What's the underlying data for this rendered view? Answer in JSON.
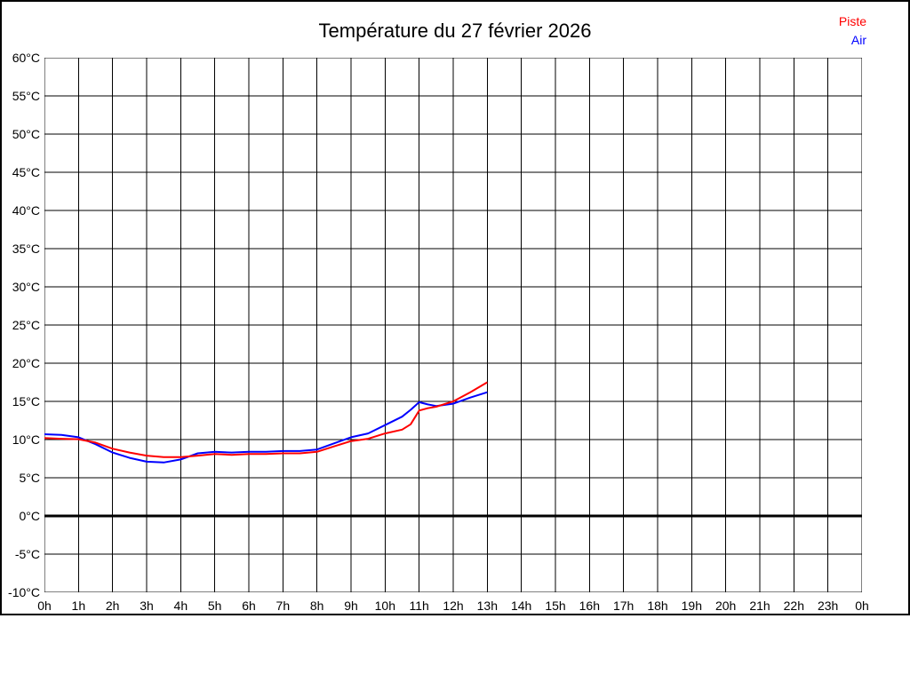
{
  "title": "Température du 27 février 2026",
  "legend": {
    "piste": {
      "label": "Piste",
      "color": "#ff0000"
    },
    "air": {
      "label": "Air",
      "color": "#0000ff"
    }
  },
  "chart_data": {
    "type": "line",
    "title": "Température du 27 février 2026",
    "xlabel": "",
    "ylabel": "",
    "xlim": [
      0,
      24
    ],
    "ylim": [
      -10,
      60
    ],
    "x_tick_labels": [
      "0h",
      "1h",
      "2h",
      "3h",
      "4h",
      "5h",
      "6h",
      "7h",
      "8h",
      "9h",
      "10h",
      "11h",
      "12h",
      "13h",
      "14h",
      "15h",
      "16h",
      "17h",
      "18h",
      "19h",
      "20h",
      "21h",
      "22h",
      "23h",
      "0h"
    ],
    "y_tick_labels": [
      "60°C",
      "55°C",
      "50°C",
      "45°C",
      "40°C",
      "35°C",
      "30°C",
      "25°C",
      "20°C",
      "15°C",
      "10°C",
      "5°C",
      "0°C",
      "-5°C",
      "-10°C"
    ],
    "grid": {
      "x_step": 1,
      "y_step": 5,
      "color": "#000000",
      "line_width": 1
    },
    "zero_line": {
      "value": 0,
      "line_width": 3,
      "color": "#000000"
    },
    "legend_position": "top-right",
    "series": [
      {
        "name": "Air",
        "color": "#0000ff",
        "line_width": 2,
        "x": [
          0,
          0.5,
          1,
          1.5,
          2,
          2.5,
          3,
          3.5,
          4,
          4.5,
          5,
          5.5,
          6,
          6.5,
          7,
          7.5,
          8,
          8.5,
          9,
          9.5,
          10,
          10.5,
          10.75,
          11,
          11.25,
          11.5,
          12,
          12.5,
          13
        ],
        "y": [
          10.7,
          10.6,
          10.3,
          9.4,
          8.3,
          7.6,
          7.1,
          7.0,
          7.4,
          8.2,
          8.4,
          8.3,
          8.4,
          8.4,
          8.5,
          8.5,
          8.7,
          9.5,
          10.3,
          10.8,
          11.9,
          13.0,
          13.9,
          14.9,
          14.6,
          14.4,
          14.7,
          15.5,
          16.2
        ]
      },
      {
        "name": "Piste",
        "color": "#ff0000",
        "line_width": 2,
        "x": [
          0,
          0.5,
          1,
          1.5,
          2,
          2.5,
          3,
          3.5,
          4,
          4.5,
          5,
          5.5,
          6,
          6.5,
          7,
          7.5,
          8,
          8.5,
          9,
          9.5,
          10,
          10.5,
          10.75,
          11,
          11.25,
          11.5,
          12,
          12.5,
          13
        ],
        "y": [
          10.2,
          10.1,
          10.05,
          9.6,
          8.8,
          8.3,
          7.9,
          7.7,
          7.7,
          7.9,
          8.1,
          8.0,
          8.1,
          8.1,
          8.2,
          8.2,
          8.4,
          9.1,
          9.8,
          10.1,
          10.8,
          11.3,
          12.0,
          13.8,
          14.1,
          14.3,
          15.0,
          16.2,
          17.5
        ]
      }
    ]
  }
}
